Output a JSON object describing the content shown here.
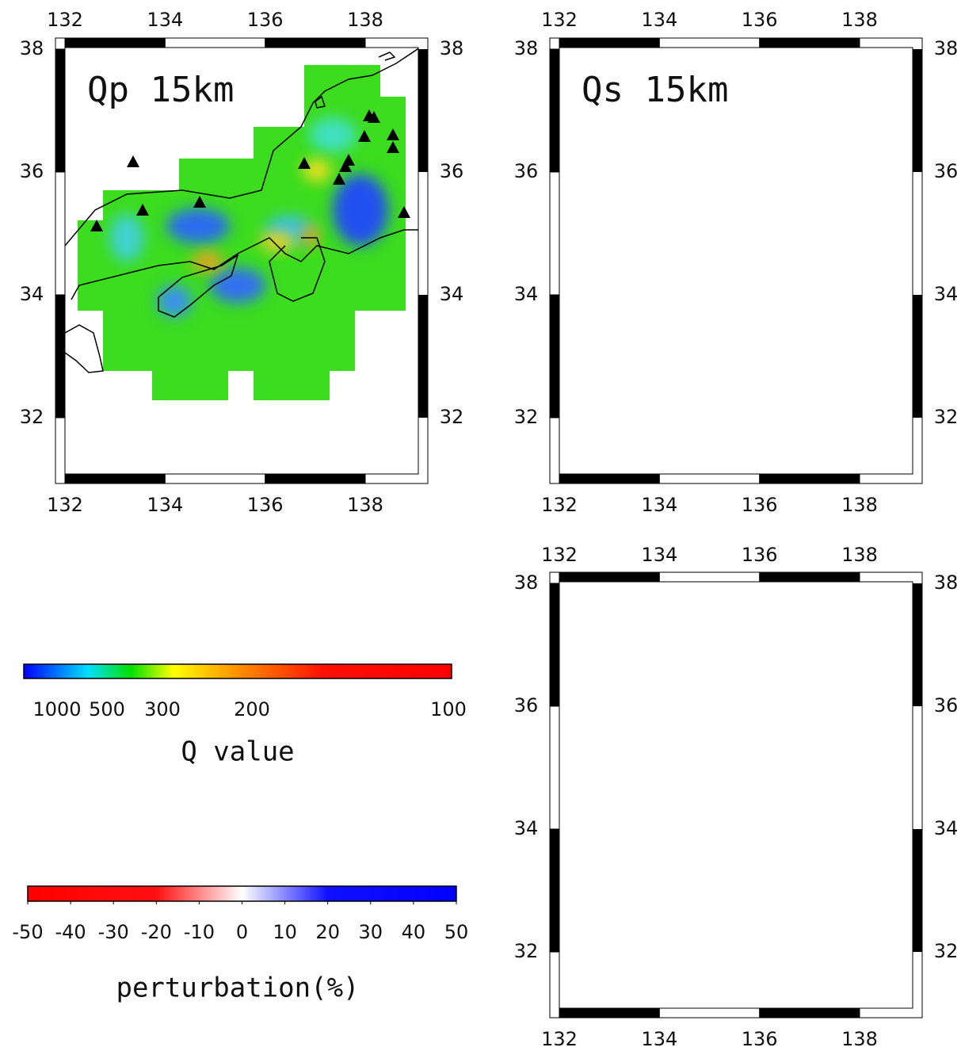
{
  "panels": [
    {
      "title": "Qp 15km",
      "xticks": [
        132,
        134,
        136,
        138
      ],
      "yticks": [
        32,
        34,
        36,
        38
      ]
    },
    {
      "title": "Qs 15km",
      "xticks": [
        132,
        134,
        136,
        138
      ],
      "yticks": [
        32,
        34,
        36,
        38
      ]
    },
    {
      "xticks": [
        132,
        134,
        136,
        138
      ],
      "yticks": [
        32,
        34,
        36,
        38
      ]
    }
  ],
  "colorbars": [
    {
      "labels": [
        1000,
        500,
        300,
        200,
        100
      ],
      "title": "Q value"
    },
    {
      "labels": [
        -50,
        -40,
        -30,
        -20,
        -10,
        0,
        10,
        20,
        30,
        40,
        50
      ],
      "title": "perturbation(%)"
    }
  ]
}
